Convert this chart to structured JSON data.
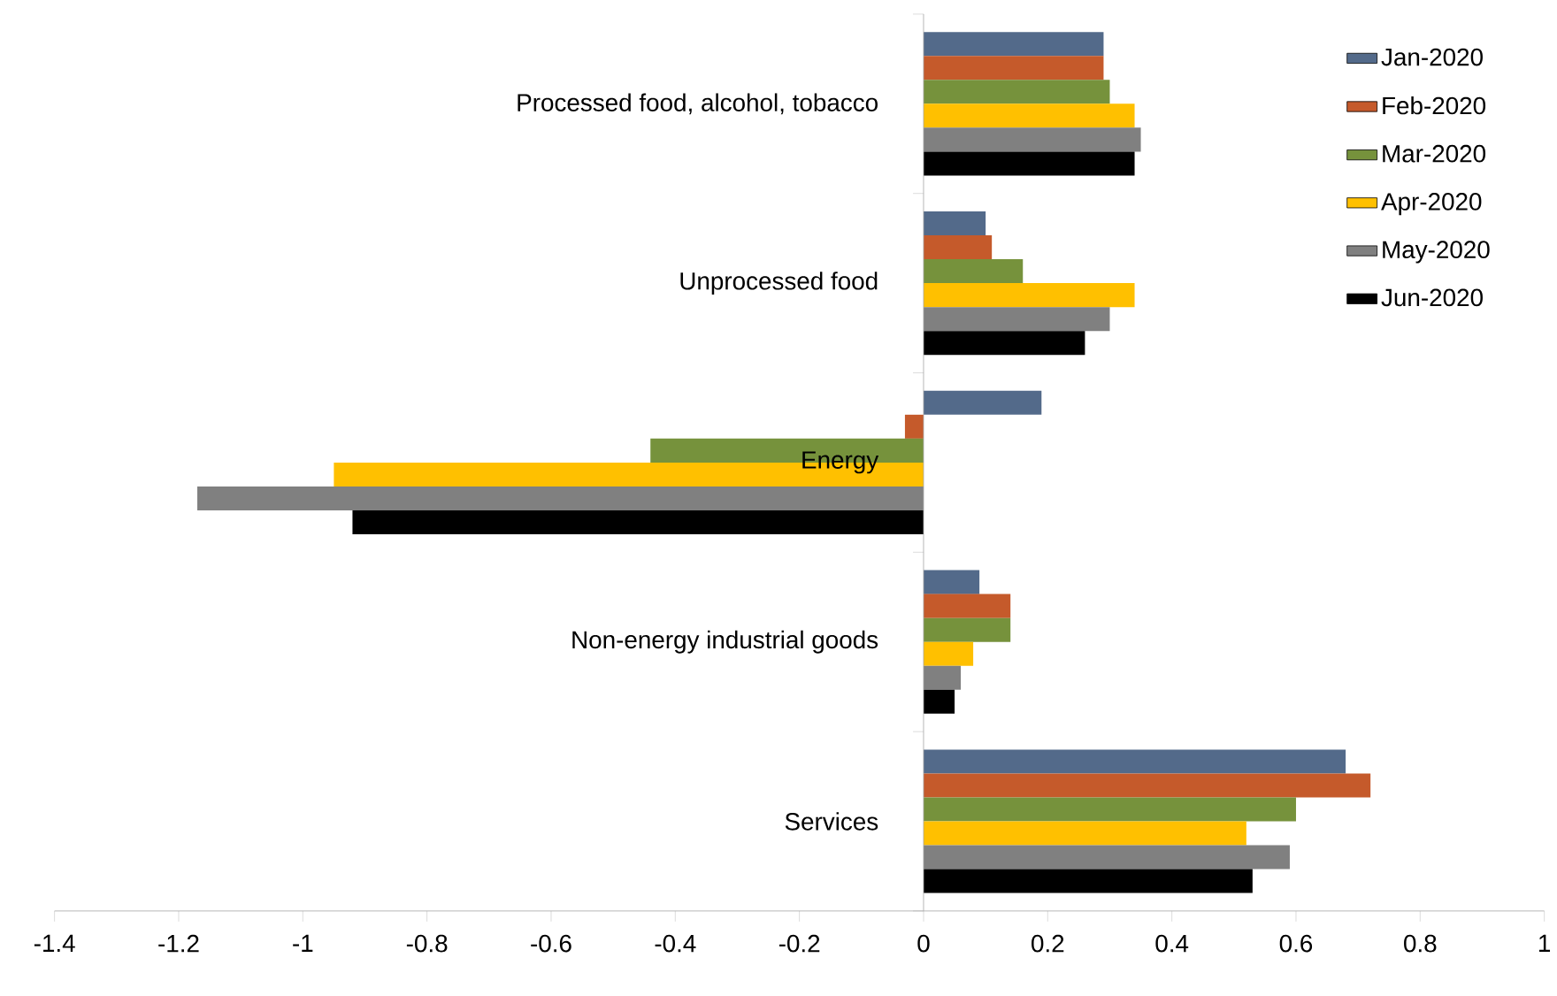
{
  "chart_data": {
    "type": "bar",
    "orientation": "horizontal",
    "categories": [
      "Processed food, alcohol, tobacco",
      "Unprocessed food",
      "Energy",
      "Non-energy industrial goods",
      "Services"
    ],
    "series": [
      {
        "name": "Jan-2020",
        "color": "#536a8a",
        "values": [
          0.29,
          0.1,
          0.19,
          0.09,
          0.68
        ]
      },
      {
        "name": "Feb-2020",
        "color": "#c55a2b",
        "values": [
          0.29,
          0.11,
          -0.03,
          0.14,
          0.72
        ]
      },
      {
        "name": "Mar-2020",
        "color": "#76923c",
        "values": [
          0.3,
          0.16,
          -0.44,
          0.14,
          0.6
        ]
      },
      {
        "name": "Apr-2020",
        "color": "#ffc000",
        "values": [
          0.34,
          0.34,
          -0.95,
          0.08,
          0.52
        ]
      },
      {
        "name": "May-2020",
        "color": "#808080",
        "values": [
          0.35,
          0.3,
          -1.17,
          0.06,
          0.59
        ]
      },
      {
        "name": "Jun-2020",
        "color": "#000000",
        "values": [
          0.34,
          0.26,
          -0.92,
          0.05,
          0.53
        ]
      }
    ],
    "xlim": [
      -1.4,
      1
    ],
    "xticks": [
      -1.4,
      -1.2,
      -1,
      -0.8,
      -0.6,
      -0.4,
      -0.2,
      0,
      0.2,
      0.4,
      0.6,
      0.8,
      1
    ],
    "legend": "top right",
    "grid": false
  }
}
